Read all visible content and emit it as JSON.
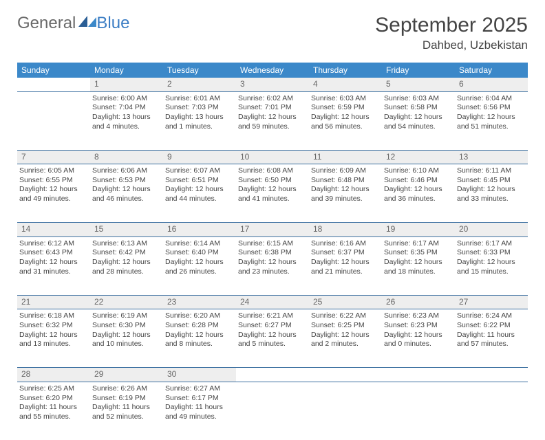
{
  "logo": {
    "text_a": "General",
    "text_b": "Blue"
  },
  "title": "September 2025",
  "location": "Dahbed, Uzbekistan",
  "colors": {
    "header_bg": "#3b88c9",
    "header_fg": "#ffffff",
    "daynum_bg": "#eeeeee",
    "rule": "#3b6fa0",
    "text": "#444444",
    "logo_gray": "#6a6a6a",
    "logo_blue": "#3b7dc4"
  },
  "weekdays": [
    "Sunday",
    "Monday",
    "Tuesday",
    "Wednesday",
    "Thursday",
    "Friday",
    "Saturday"
  ],
  "weeks": [
    {
      "nums": [
        "",
        "1",
        "2",
        "3",
        "4",
        "5",
        "6"
      ],
      "cells": [
        [],
        [
          "Sunrise: 6:00 AM",
          "Sunset: 7:04 PM",
          "Daylight: 13 hours",
          "and 4 minutes."
        ],
        [
          "Sunrise: 6:01 AM",
          "Sunset: 7:03 PM",
          "Daylight: 13 hours",
          "and 1 minutes."
        ],
        [
          "Sunrise: 6:02 AM",
          "Sunset: 7:01 PM",
          "Daylight: 12 hours",
          "and 59 minutes."
        ],
        [
          "Sunrise: 6:03 AM",
          "Sunset: 6:59 PM",
          "Daylight: 12 hours",
          "and 56 minutes."
        ],
        [
          "Sunrise: 6:03 AM",
          "Sunset: 6:58 PM",
          "Daylight: 12 hours",
          "and 54 minutes."
        ],
        [
          "Sunrise: 6:04 AM",
          "Sunset: 6:56 PM",
          "Daylight: 12 hours",
          "and 51 minutes."
        ]
      ]
    },
    {
      "nums": [
        "7",
        "8",
        "9",
        "10",
        "11",
        "12",
        "13"
      ],
      "cells": [
        [
          "Sunrise: 6:05 AM",
          "Sunset: 6:55 PM",
          "Daylight: 12 hours",
          "and 49 minutes."
        ],
        [
          "Sunrise: 6:06 AM",
          "Sunset: 6:53 PM",
          "Daylight: 12 hours",
          "and 46 minutes."
        ],
        [
          "Sunrise: 6:07 AM",
          "Sunset: 6:51 PM",
          "Daylight: 12 hours",
          "and 44 minutes."
        ],
        [
          "Sunrise: 6:08 AM",
          "Sunset: 6:50 PM",
          "Daylight: 12 hours",
          "and 41 minutes."
        ],
        [
          "Sunrise: 6:09 AM",
          "Sunset: 6:48 PM",
          "Daylight: 12 hours",
          "and 39 minutes."
        ],
        [
          "Sunrise: 6:10 AM",
          "Sunset: 6:46 PM",
          "Daylight: 12 hours",
          "and 36 minutes."
        ],
        [
          "Sunrise: 6:11 AM",
          "Sunset: 6:45 PM",
          "Daylight: 12 hours",
          "and 33 minutes."
        ]
      ]
    },
    {
      "nums": [
        "14",
        "15",
        "16",
        "17",
        "18",
        "19",
        "20"
      ],
      "cells": [
        [
          "Sunrise: 6:12 AM",
          "Sunset: 6:43 PM",
          "Daylight: 12 hours",
          "and 31 minutes."
        ],
        [
          "Sunrise: 6:13 AM",
          "Sunset: 6:42 PM",
          "Daylight: 12 hours",
          "and 28 minutes."
        ],
        [
          "Sunrise: 6:14 AM",
          "Sunset: 6:40 PM",
          "Daylight: 12 hours",
          "and 26 minutes."
        ],
        [
          "Sunrise: 6:15 AM",
          "Sunset: 6:38 PM",
          "Daylight: 12 hours",
          "and 23 minutes."
        ],
        [
          "Sunrise: 6:16 AM",
          "Sunset: 6:37 PM",
          "Daylight: 12 hours",
          "and 21 minutes."
        ],
        [
          "Sunrise: 6:17 AM",
          "Sunset: 6:35 PM",
          "Daylight: 12 hours",
          "and 18 minutes."
        ],
        [
          "Sunrise: 6:17 AM",
          "Sunset: 6:33 PM",
          "Daylight: 12 hours",
          "and 15 minutes."
        ]
      ]
    },
    {
      "nums": [
        "21",
        "22",
        "23",
        "24",
        "25",
        "26",
        "27"
      ],
      "cells": [
        [
          "Sunrise: 6:18 AM",
          "Sunset: 6:32 PM",
          "Daylight: 12 hours",
          "and 13 minutes."
        ],
        [
          "Sunrise: 6:19 AM",
          "Sunset: 6:30 PM",
          "Daylight: 12 hours",
          "and 10 minutes."
        ],
        [
          "Sunrise: 6:20 AM",
          "Sunset: 6:28 PM",
          "Daylight: 12 hours",
          "and 8 minutes."
        ],
        [
          "Sunrise: 6:21 AM",
          "Sunset: 6:27 PM",
          "Daylight: 12 hours",
          "and 5 minutes."
        ],
        [
          "Sunrise: 6:22 AM",
          "Sunset: 6:25 PM",
          "Daylight: 12 hours",
          "and 2 minutes."
        ],
        [
          "Sunrise: 6:23 AM",
          "Sunset: 6:23 PM",
          "Daylight: 12 hours",
          "and 0 minutes."
        ],
        [
          "Sunrise: 6:24 AM",
          "Sunset: 6:22 PM",
          "Daylight: 11 hours",
          "and 57 minutes."
        ]
      ]
    },
    {
      "nums": [
        "28",
        "29",
        "30",
        "",
        "",
        "",
        ""
      ],
      "cells": [
        [
          "Sunrise: 6:25 AM",
          "Sunset: 6:20 PM",
          "Daylight: 11 hours",
          "and 55 minutes."
        ],
        [
          "Sunrise: 6:26 AM",
          "Sunset: 6:19 PM",
          "Daylight: 11 hours",
          "and 52 minutes."
        ],
        [
          "Sunrise: 6:27 AM",
          "Sunset: 6:17 PM",
          "Daylight: 11 hours",
          "and 49 minutes."
        ],
        [],
        [],
        [],
        []
      ]
    }
  ]
}
